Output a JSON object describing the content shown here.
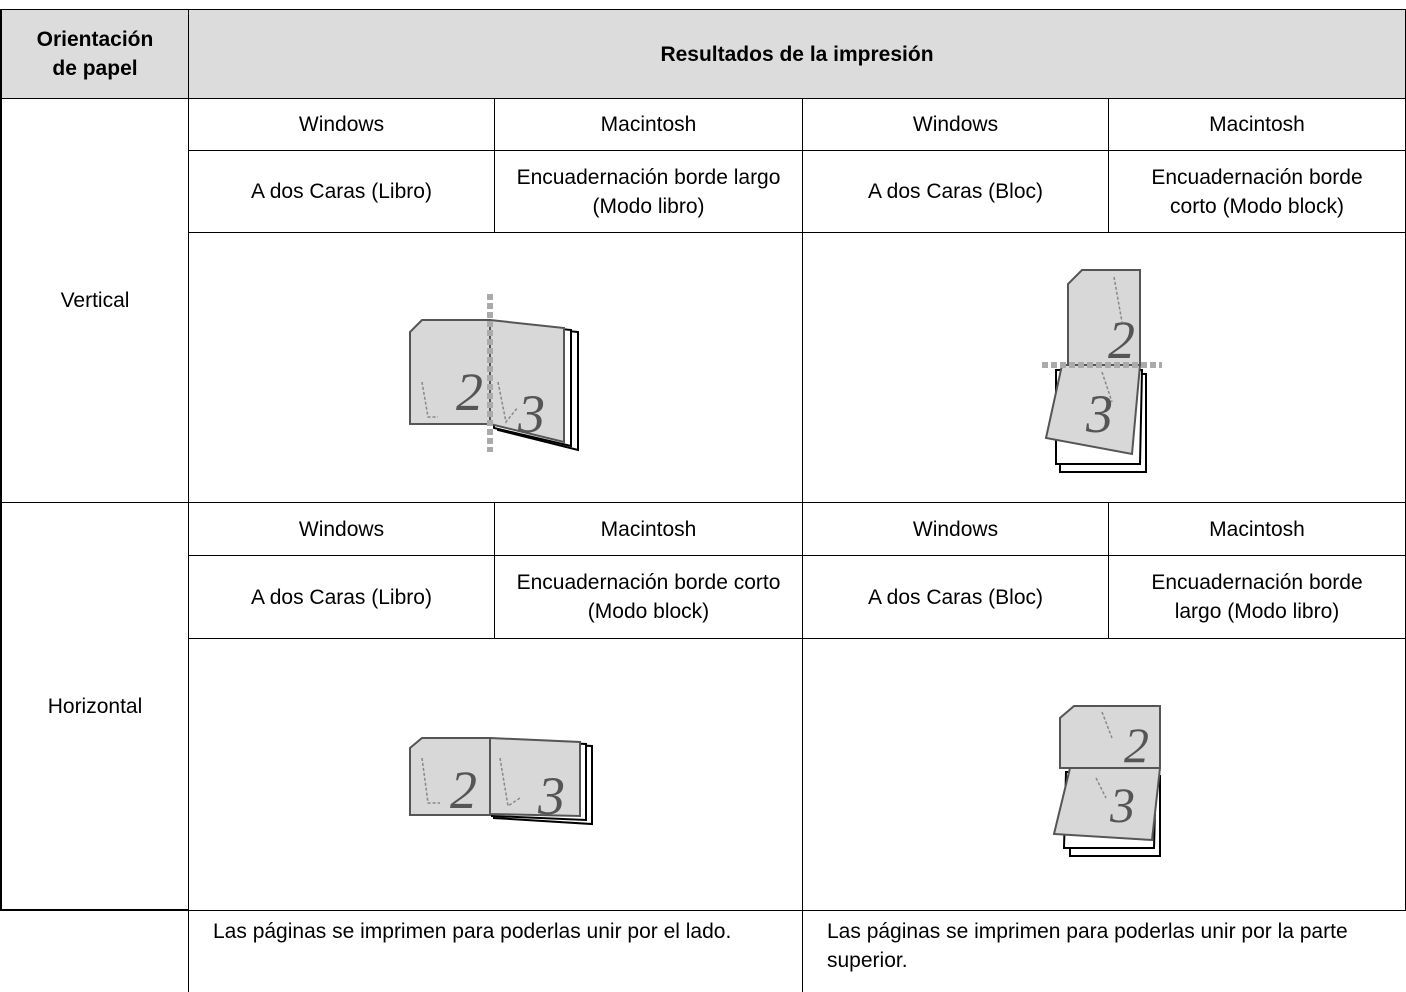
{
  "table": {
    "header": {
      "orientation": "Orientación de papel",
      "results": "Resultados de la impresión"
    },
    "rows": [
      {
        "orientation": "Vertical",
        "columns": [
          {
            "os": "Windows",
            "setting": "A dos Caras (Libro)"
          },
          {
            "os": "Macintosh",
            "setting": "Encuadernación borde largo (Modo libro)"
          },
          {
            "os": "Windows",
            "setting": "A dos Caras (Bloc)"
          },
          {
            "os": "Macintosh",
            "setting": "Encuadernación borde corto (Modo block)"
          }
        ],
        "illustrations": [
          {
            "pages": [
              "2",
              "3"
            ]
          },
          {
            "pages": [
              "2",
              "3"
            ]
          }
        ]
      },
      {
        "orientation": "Horizontal",
        "columns": [
          {
            "os": "Windows",
            "setting": "A dos Caras (Libro)"
          },
          {
            "os": "Macintosh",
            "setting": "Encuadernación borde corto (Modo block)"
          },
          {
            "os": "Windows",
            "setting": "A dos Caras (Bloc)"
          },
          {
            "os": "Macintosh",
            "setting": "Encuadernación borde largo (Modo libro)"
          }
        ],
        "illustrations": [
          {
            "pages": [
              "2",
              "3"
            ]
          },
          {
            "pages": [
              "2",
              "3"
            ]
          }
        ]
      }
    ],
    "notes": [
      "Las páginas se imprimen para poderlas unir por el lado.",
      "Las páginas se imprimen para poderlas unir por la parte superior."
    ]
  }
}
